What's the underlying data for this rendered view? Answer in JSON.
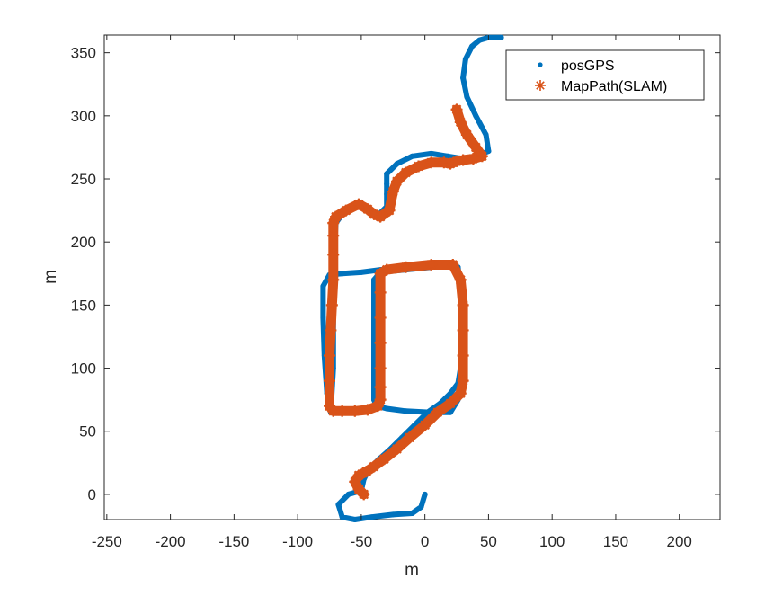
{
  "chart_data": {
    "type": "line",
    "title": "",
    "xlabel": "m",
    "ylabel": "m",
    "xlim": [
      -252,
      232
    ],
    "ylim": [
      -20,
      364
    ],
    "xticks": [
      -250,
      -200,
      -150,
      -100,
      -50,
      0,
      50,
      100,
      150,
      200
    ],
    "yticks": [
      0,
      50,
      100,
      150,
      200,
      250,
      300,
      350
    ],
    "grid": false,
    "legend": {
      "placement": "top-right"
    },
    "colors": {
      "posGPS": "#0072BD",
      "MapPath": "#D95319"
    },
    "series": [
      {
        "name": "posGPS",
        "marker": "dot",
        "x": [
          0,
          -3,
          -10,
          -25,
          -42,
          -55,
          -65,
          -68,
          -60,
          -50,
          -48,
          -44,
          -36,
          -28,
          -18,
          -8,
          2,
          12,
          20,
          26,
          28,
          28,
          28,
          28,
          26,
          18,
          5,
          -15,
          -35,
          -40,
          -40,
          -40,
          -40,
          -40,
          -40,
          -38,
          -30,
          -15,
          5,
          20,
          26,
          28,
          28,
          28,
          28,
          26,
          20,
          5,
          -15,
          -35,
          -50,
          -65,
          -75,
          -80,
          -80,
          -79,
          -77,
          -74,
          -72,
          -72,
          -72,
          -70,
          -65,
          -55,
          -45,
          -38,
          -30,
          -30,
          -30,
          -30,
          -22,
          -10,
          5,
          18,
          30,
          40,
          50,
          48,
          40,
          33,
          30,
          32,
          37,
          43,
          50,
          60
        ],
        "y": [
          0,
          -10,
          -15,
          -16,
          -18,
          -20,
          -18,
          -8,
          0,
          3,
          12,
          20,
          28,
          35,
          45,
          55,
          65,
          72,
          80,
          88,
          100,
          120,
          140,
          160,
          180,
          183,
          180,
          178,
          176,
          170,
          150,
          130,
          110,
          90,
          75,
          70,
          68,
          66,
          65,
          65,
          75,
          100,
          120,
          140,
          160,
          175,
          181,
          182,
          180,
          178,
          176,
          175,
          174,
          165,
          140,
          110,
          80,
          65,
          100,
          140,
          180,
          215,
          222,
          230,
          228,
          220,
          228,
          238,
          246,
          254,
          262,
          268,
          270,
          268,
          266,
          268,
          272,
          285,
          300,
          315,
          330,
          345,
          355,
          360,
          362,
          362
        ]
      },
      {
        "name": "MapPath(SLAM)",
        "marker": "asterisk",
        "x": [
          -48,
          -52,
          -55,
          -52,
          -46,
          -40,
          -32,
          -22,
          -12,
          0,
          10,
          20,
          28,
          30,
          30,
          30,
          30,
          28,
          22,
          5,
          -15,
          -30,
          -35,
          -35,
          -35,
          -35,
          -35,
          -35,
          -35,
          -37,
          -45,
          -55,
          -65,
          -72,
          -75,
          -75,
          -75,
          -74,
          -73,
          -72,
          -72,
          -72,
          -72,
          -70,
          -62,
          -52,
          -45,
          -40,
          -35,
          -28,
          -25,
          -22,
          -15,
          -5,
          5,
          15,
          20,
          25,
          30,
          38,
          45,
          40,
          33,
          28,
          25
        ],
        "y": [
          0,
          4,
          10,
          15,
          18,
          22,
          28,
          36,
          45,
          55,
          65,
          72,
          80,
          90,
          110,
          130,
          150,
          170,
          182,
          182,
          180,
          178,
          175,
          160,
          140,
          120,
          100,
          85,
          75,
          70,
          67,
          66,
          66,
          66,
          70,
          90,
          110,
          130,
          150,
          170,
          190,
          205,
          215,
          220,
          225,
          230,
          226,
          222,
          220,
          225,
          240,
          248,
          255,
          260,
          263,
          263,
          262,
          264,
          265,
          266,
          268,
          275,
          285,
          295,
          305
        ]
      }
    ]
  }
}
